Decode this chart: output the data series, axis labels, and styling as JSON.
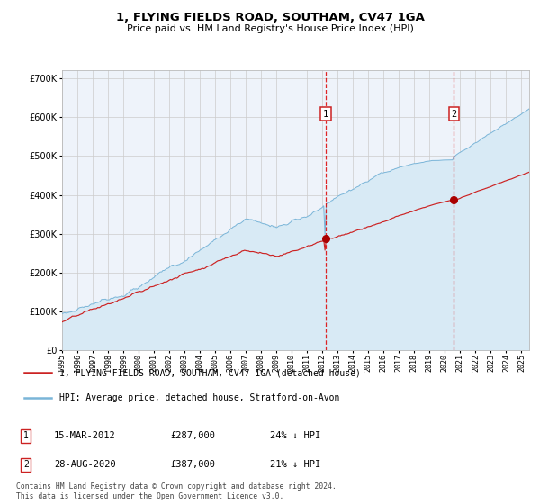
{
  "title": "1, FLYING FIELDS ROAD, SOUTHAM, CV47 1GA",
  "subtitle": "Price paid vs. HM Land Registry's House Price Index (HPI)",
  "legend_line1": "1, FLYING FIELDS ROAD, SOUTHAM, CV47 1GA (detached house)",
  "legend_line2": "HPI: Average price, detached house, Stratford-on-Avon",
  "annotation1": {
    "label": "1",
    "date": "15-MAR-2012",
    "price": 287000,
    "pct": "24% ↓ HPI"
  },
  "annotation2": {
    "label": "2",
    "date": "28-AUG-2020",
    "price": 387000,
    "pct": "21% ↓ HPI"
  },
  "footer": "Contains HM Land Registry data © Crown copyright and database right 2024.\nThis data is licensed under the Open Government Licence v3.0.",
  "hpi_color": "#7ab5d8",
  "hpi_fill_color": "#d8eaf5",
  "property_color": "#cc2222",
  "annotation_dot_color": "#aa0000",
  "grid_color": "#cccccc",
  "background_color": "#ffffff",
  "plot_bg_color": "#eef3fa",
  "ylim": [
    0,
    720000
  ],
  "start_year": 1995,
  "end_year": 2025,
  "year1": 2012.208,
  "year2": 2020.583,
  "dot1_price": 287000,
  "dot2_price": 387000
}
